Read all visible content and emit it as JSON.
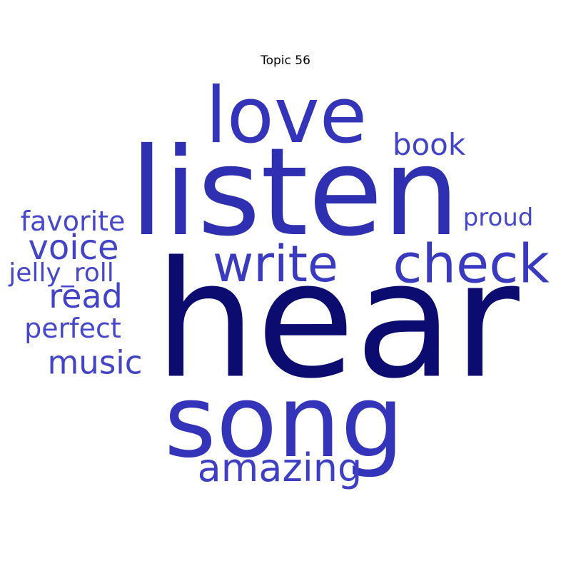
{
  "title": "Topic 56",
  "words": [
    {
      "text": "hear",
      "color": "#0b0b70"
    },
    {
      "text": "listen",
      "color": "#2f2fb2"
    },
    {
      "text": "song",
      "color": "#3434bb"
    },
    {
      "text": "love",
      "color": "#3434bb"
    },
    {
      "text": "check",
      "color": "#3a3ac0"
    },
    {
      "text": "write",
      "color": "#3a3ac0"
    },
    {
      "text": "amazing",
      "color": "#3f3fc4"
    },
    {
      "text": "book",
      "color": "#4343c8"
    },
    {
      "text": "voice",
      "color": "#4343c8"
    },
    {
      "text": "music",
      "color": "#4343c8"
    },
    {
      "text": "read",
      "color": "#4343c8"
    },
    {
      "text": "favorite",
      "color": "#4747cc"
    },
    {
      "text": "perfect",
      "color": "#4747cc"
    },
    {
      "text": "proud",
      "color": "#4747cc"
    },
    {
      "text": "jelly_roll",
      "color": "#4747cc"
    }
  ]
}
